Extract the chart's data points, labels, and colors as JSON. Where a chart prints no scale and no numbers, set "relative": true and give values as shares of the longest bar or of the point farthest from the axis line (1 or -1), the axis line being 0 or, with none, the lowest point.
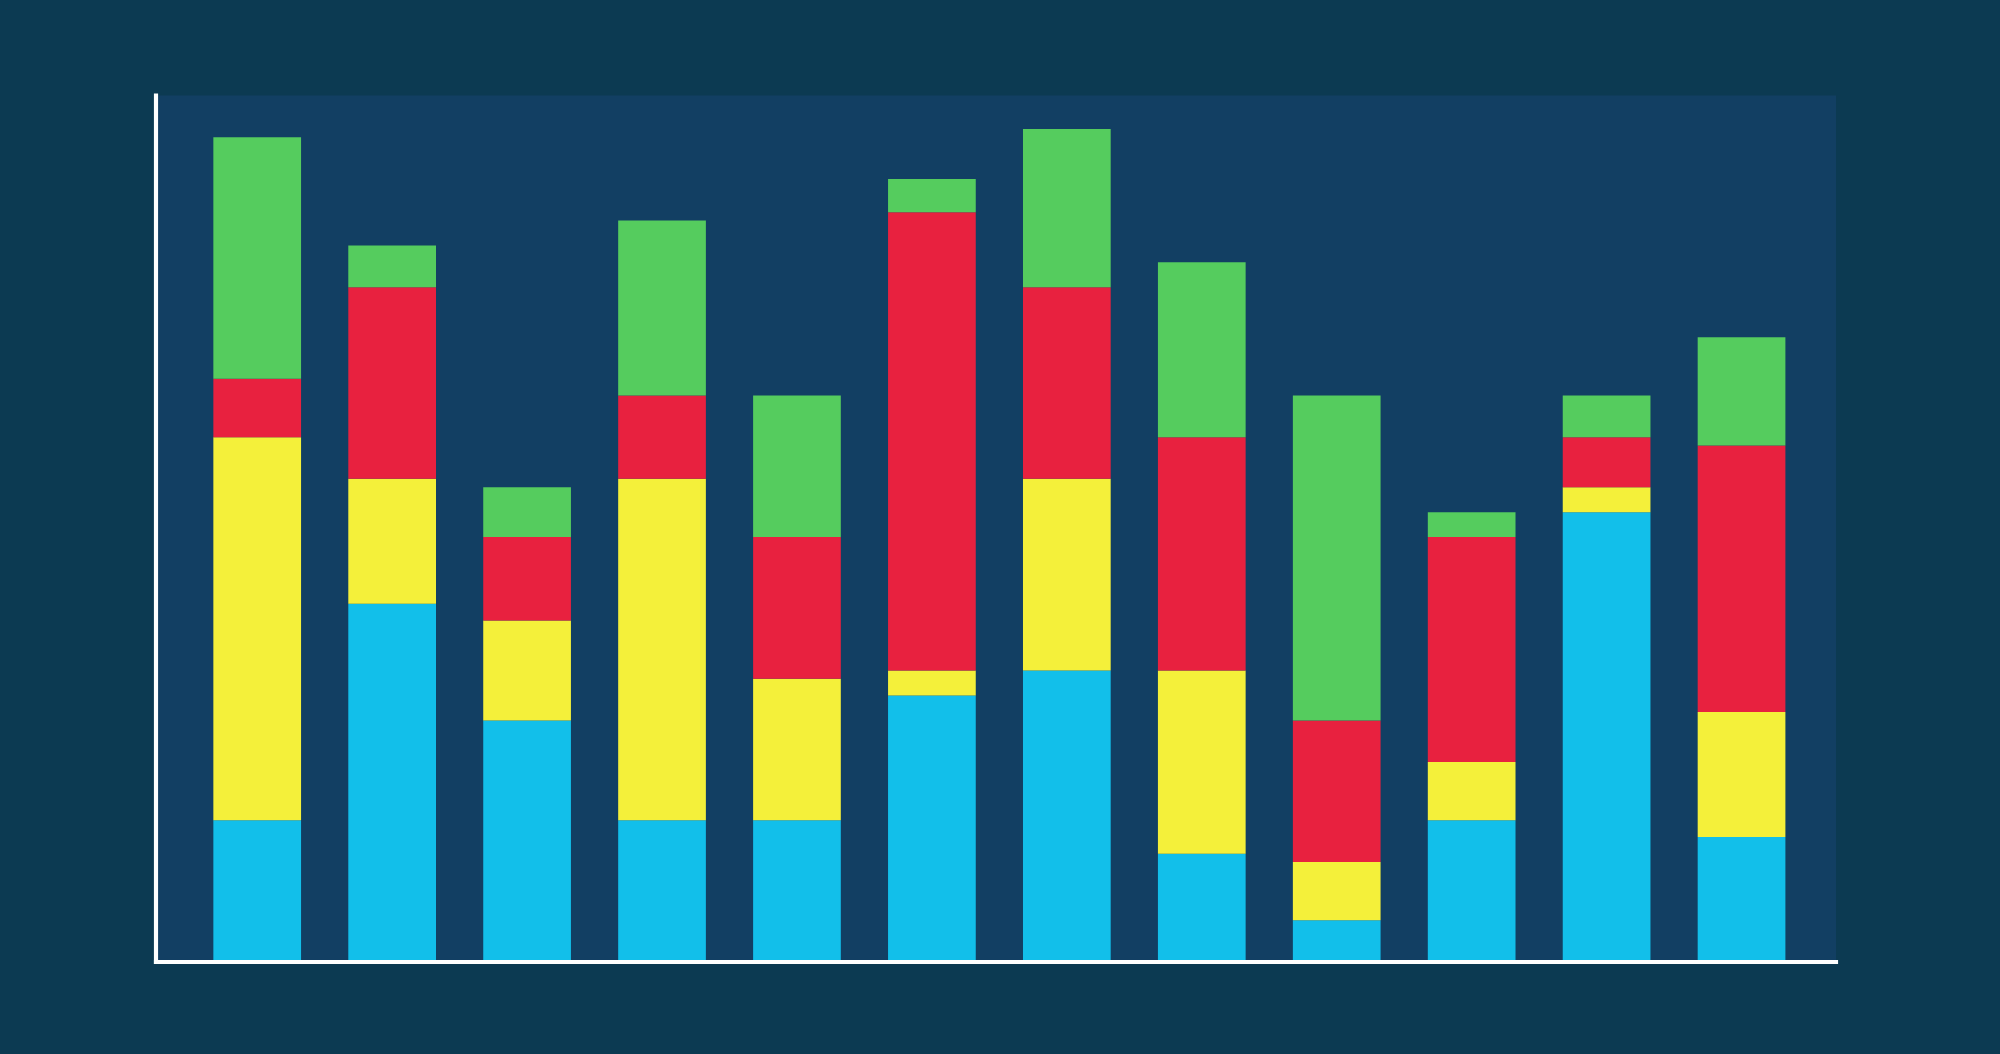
{
  "chart_data": {
    "type": "bar",
    "stacked": true,
    "relative": true,
    "categories": [
      null,
      null,
      null,
      null,
      null,
      null,
      null,
      null,
      null,
      null,
      null,
      null
    ],
    "series": [
      {
        "color": "#12bfea",
        "values": [
          0.17,
          0.43,
          0.29,
          0.17,
          0.17,
          0.32,
          0.35,
          0.13,
          0.05,
          0.17,
          0.54,
          0.15
        ]
      },
      {
        "color": "#f4f03a",
        "values": [
          0.46,
          0.15,
          0.12,
          0.41,
          0.17,
          0.03,
          0.23,
          0.22,
          0.07,
          0.07,
          0.03,
          0.15
        ]
      },
      {
        "color": "#e8213f",
        "values": [
          0.07,
          0.23,
          0.1,
          0.1,
          0.17,
          0.55,
          0.23,
          0.28,
          0.17,
          0.27,
          0.06,
          0.32
        ]
      },
      {
        "color": "#55cc5e",
        "values": [
          0.29,
          0.05,
          0.06,
          0.21,
          0.17,
          0.04,
          0.19,
          0.21,
          0.39,
          0.03,
          0.05,
          0.13
        ]
      }
    ],
    "grid": false,
    "legend": false
  }
}
